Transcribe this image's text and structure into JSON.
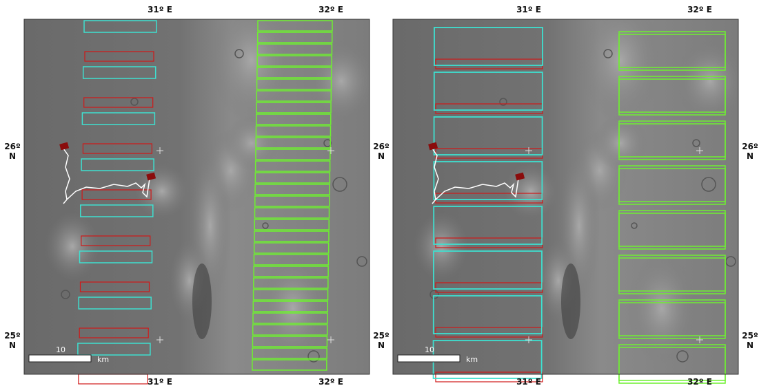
{
  "panels": [
    {
      "top_labels": [
        "31º E",
        "32º E"
      ],
      "bottom_labels": [
        "31º E",
        "32º E"
      ],
      "left_labels": [
        [
          "26º",
          "N"
        ],
        [
          "25º",
          "N"
        ]
      ],
      "scale_value": "10",
      "scale_unit": "km"
    },
    {
      "top_labels": [
        "31º E",
        "32º E"
      ],
      "bottom_labels": [
        "31º E",
        "32º E"
      ],
      "left_labels": [
        [
          "26º",
          "N"
        ],
        [
          "25º",
          "N"
        ]
      ],
      "right_labels": [
        [
          "26º",
          "N"
        ],
        [
          "25º",
          "N"
        ]
      ],
      "scale_value": "10",
      "scale_unit": "km"
    }
  ]
}
